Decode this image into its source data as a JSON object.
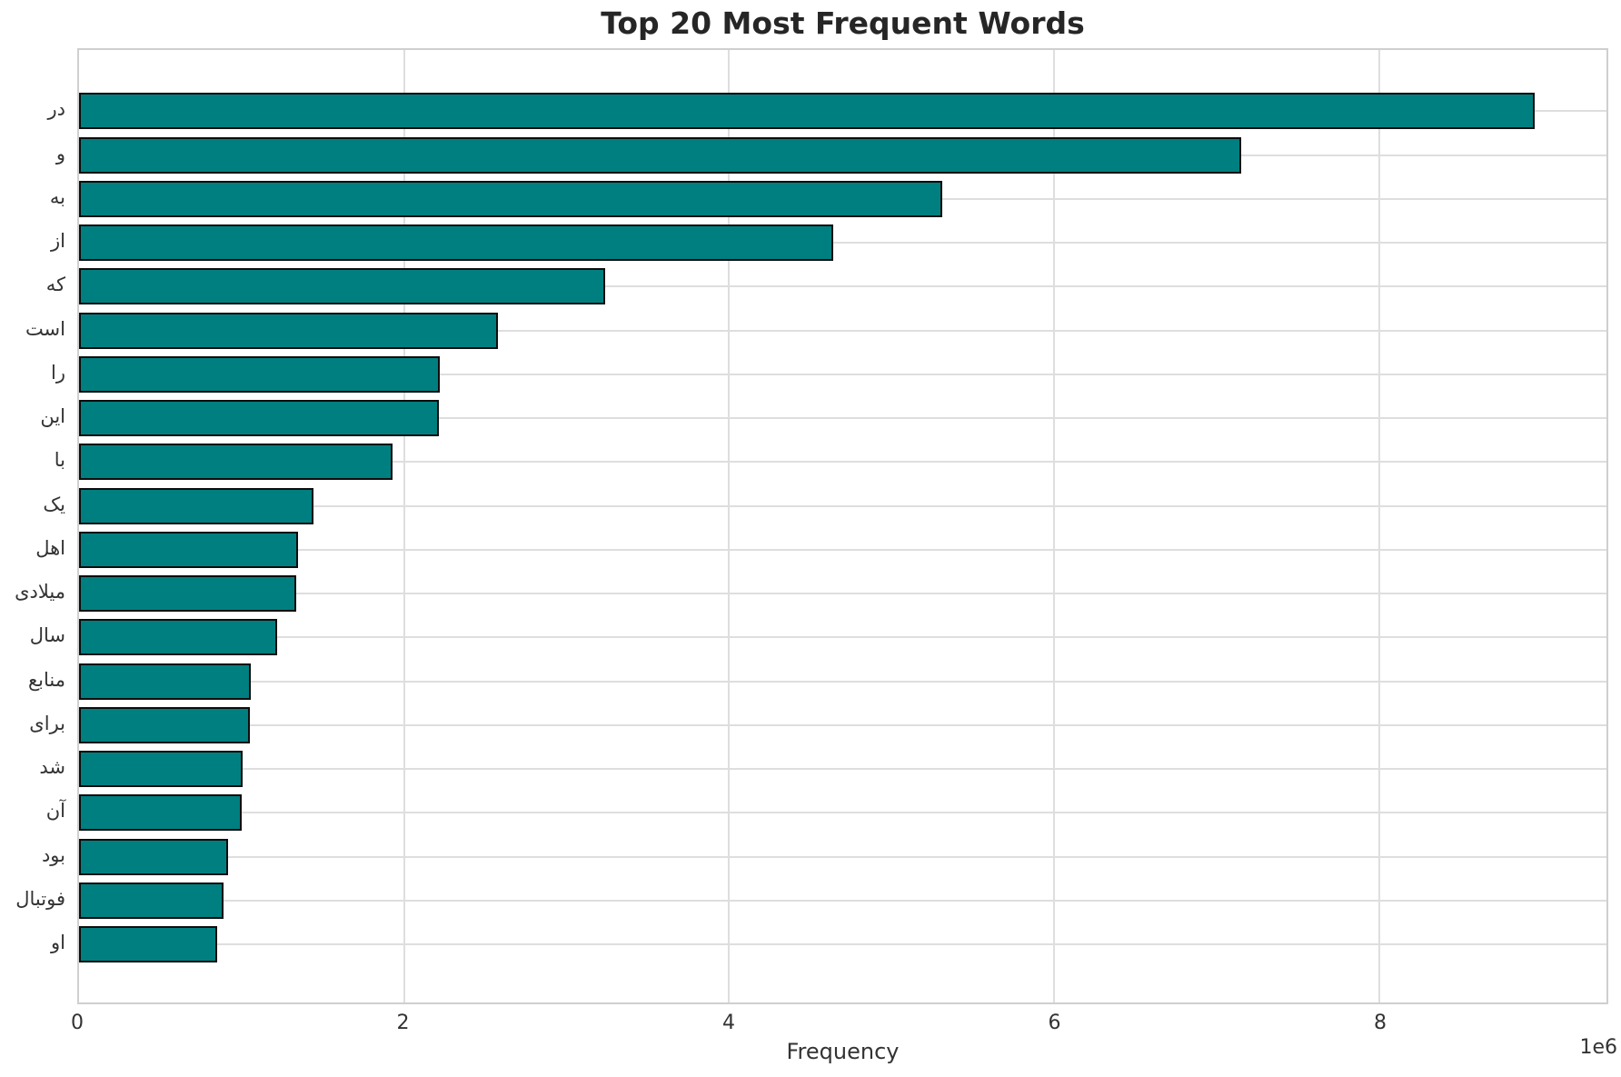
{
  "chart_data": {
    "type": "bar",
    "orientation": "horizontal",
    "title": "Top 20 Most Frequent Words",
    "xlabel": "Frequency",
    "ylabel": "",
    "offset_label": "1e6",
    "categories": [
      "در",
      "و",
      "به",
      "از",
      "که",
      "است",
      "را",
      "این",
      "با",
      "یک",
      "اهل",
      "میلادی",
      "سال",
      "منابع",
      "برای",
      "شد",
      "آن",
      "بود",
      "فوتبال",
      "او"
    ],
    "values": [
      8960000,
      7150000,
      5310000,
      4640000,
      3240000,
      2580000,
      2220000,
      2215000,
      1930000,
      1440000,
      1350000,
      1335000,
      1220000,
      1055000,
      1050000,
      1005000,
      1000000,
      915000,
      890000,
      850000
    ],
    "xlim": [
      0,
      9400000
    ],
    "xticks": [
      0,
      2000000,
      4000000,
      6000000,
      8000000
    ],
    "xtick_labels": [
      "0",
      "2",
      "4",
      "6",
      "8"
    ],
    "grid": true,
    "legend": false,
    "bar_color": "#007f80",
    "bar_edge_color": "#0d0d0d",
    "grid_color": "#dedede"
  }
}
